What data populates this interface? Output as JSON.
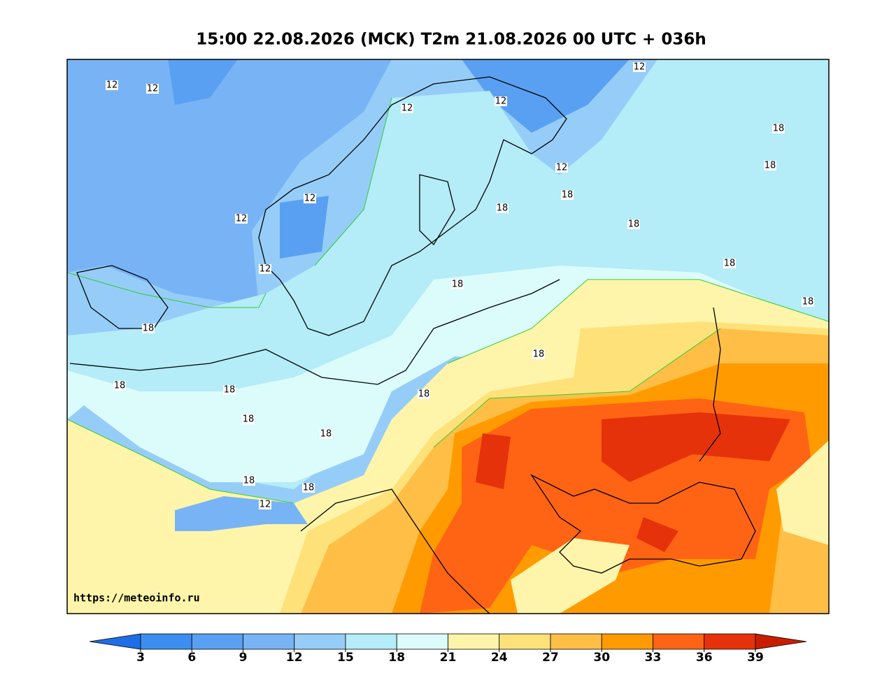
{
  "title": "15:00 22.08.2026 (MCK) T2m 21.08.2026 00 UTC + 036h",
  "url": "https://meteoinfo.ru",
  "contour_labels": [
    "12",
    "12",
    "12",
    "12",
    "12",
    "12",
    "12",
    "12",
    "12",
    "18",
    "18",
    "18",
    "18",
    "18",
    "18",
    "18",
    "18",
    "18",
    "18",
    "18",
    "18",
    "18",
    "18",
    "18",
    "18",
    "18",
    "12"
  ],
  "colorbar": {
    "ticks": [
      3,
      6,
      9,
      12,
      15,
      18,
      21,
      24,
      27,
      30,
      33,
      36,
      39
    ],
    "colors": [
      "#1e6ee6",
      "#3c8ff0",
      "#5aa0f2",
      "#78b4f5",
      "#96cdf8",
      "#b4ecf8",
      "#dcfbfb",
      "#fff5aa",
      "#ffe17a",
      "#ffbe46",
      "#ff9b00",
      "#ff6414",
      "#e6320a",
      "#c81e00"
    ]
  }
}
